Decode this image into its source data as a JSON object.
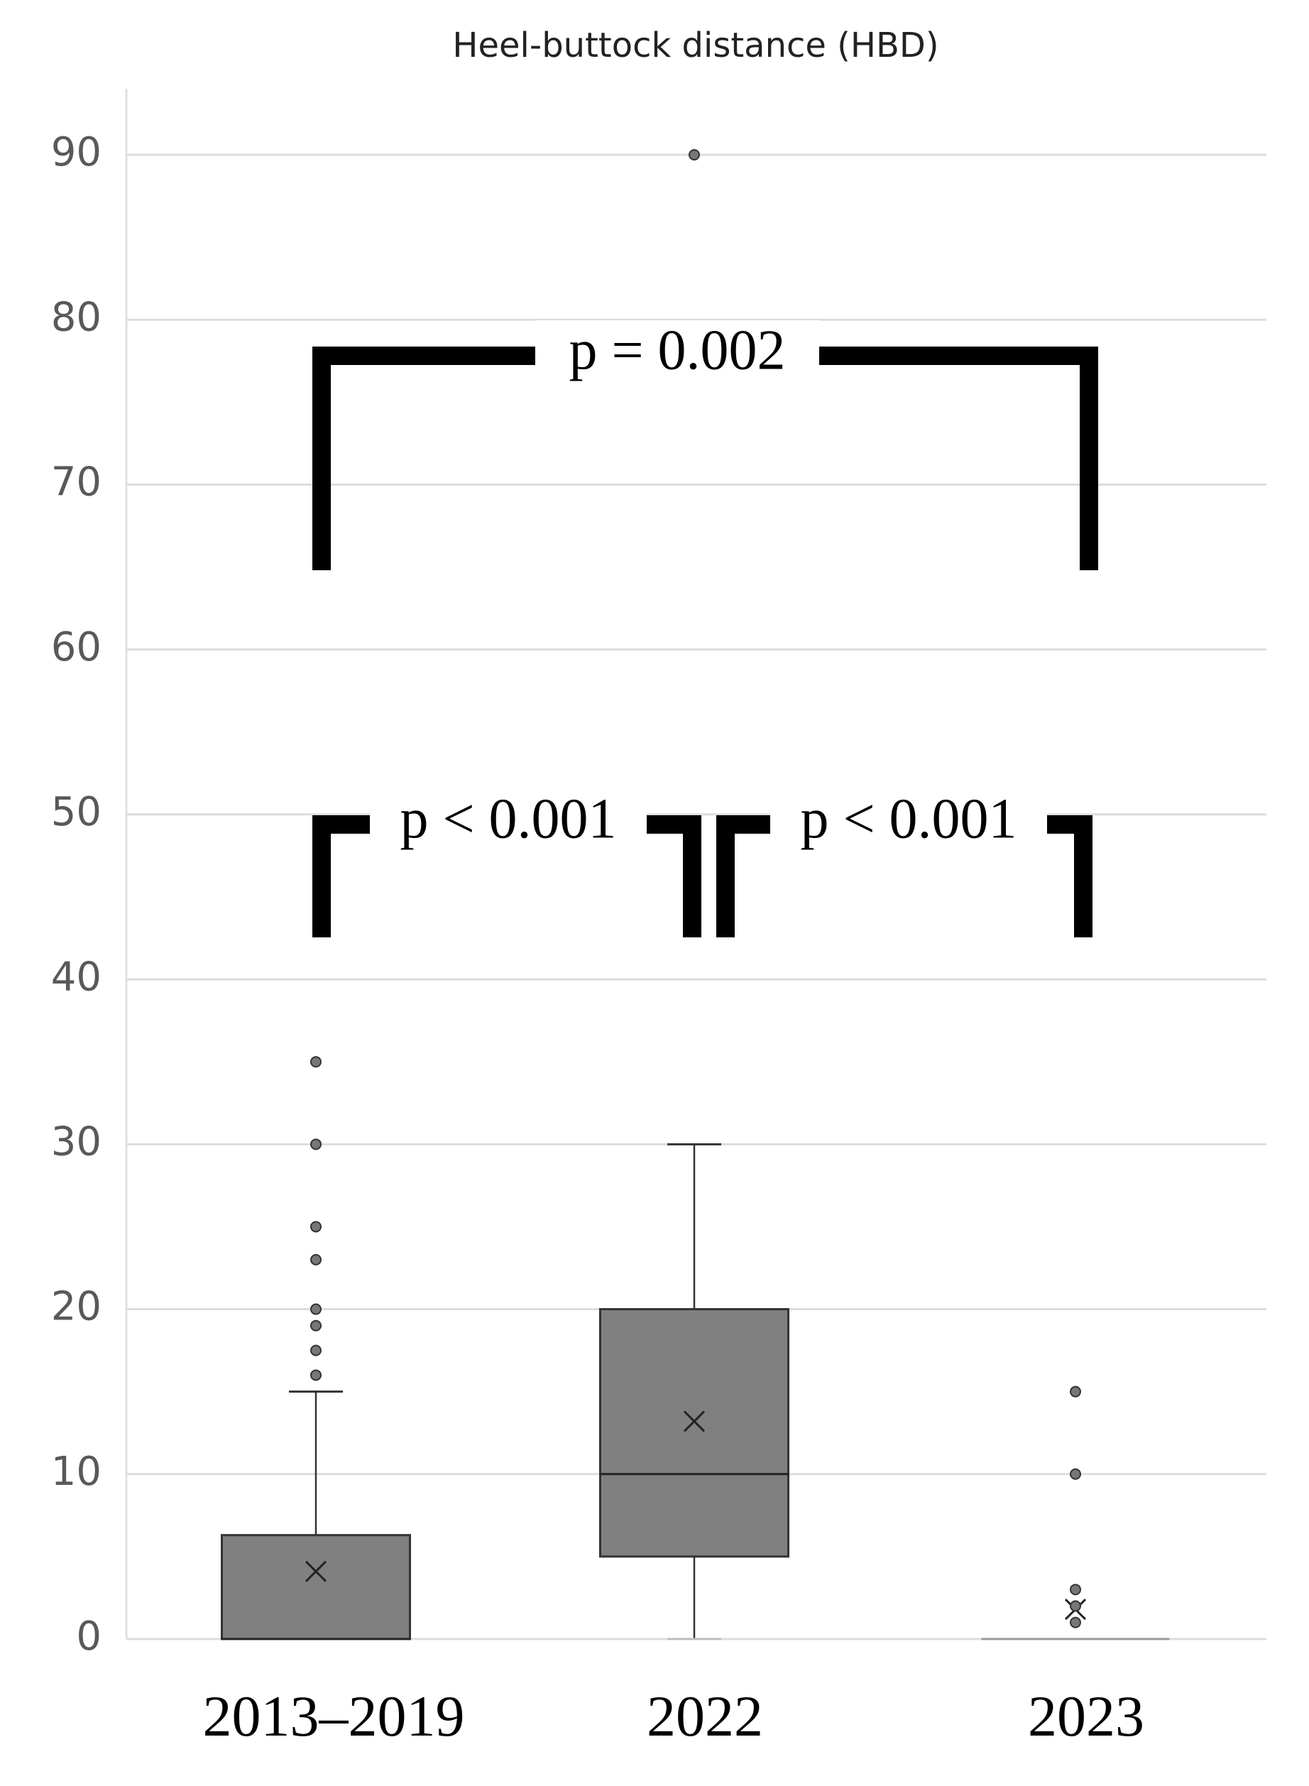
{
  "chart_data": {
    "type": "box",
    "title": "Heel-buttock distance (HBD)",
    "categories": [
      "2013–2019",
      "2022",
      "2023"
    ],
    "boxes": [
      {
        "min": 0,
        "q1": 0,
        "median": 0,
        "q3": 6.3,
        "max": 15,
        "mean": 4.1,
        "outliers": [
          16,
          17.5,
          19,
          20,
          23,
          25,
          30,
          35
        ]
      },
      {
        "min": 0,
        "q1": 5,
        "median": 10,
        "q3": 20,
        "max": 30,
        "mean": 13.2,
        "outliers": [
          90
        ]
      },
      {
        "min": 0,
        "q1": 0,
        "median": 0,
        "q3": 0,
        "max": 0,
        "mean": 1.8,
        "outliers": [
          1,
          2,
          3,
          10,
          15
        ]
      }
    ],
    "color": "#808080",
    "ylim": [
      0,
      90
    ],
    "yticks": [
      0,
      10,
      20,
      30,
      40,
      50,
      60,
      70,
      80,
      90
    ],
    "grid": true,
    "annotations": [
      "p = 0.002",
      "p < 0.001",
      "p < 0.001"
    ]
  }
}
